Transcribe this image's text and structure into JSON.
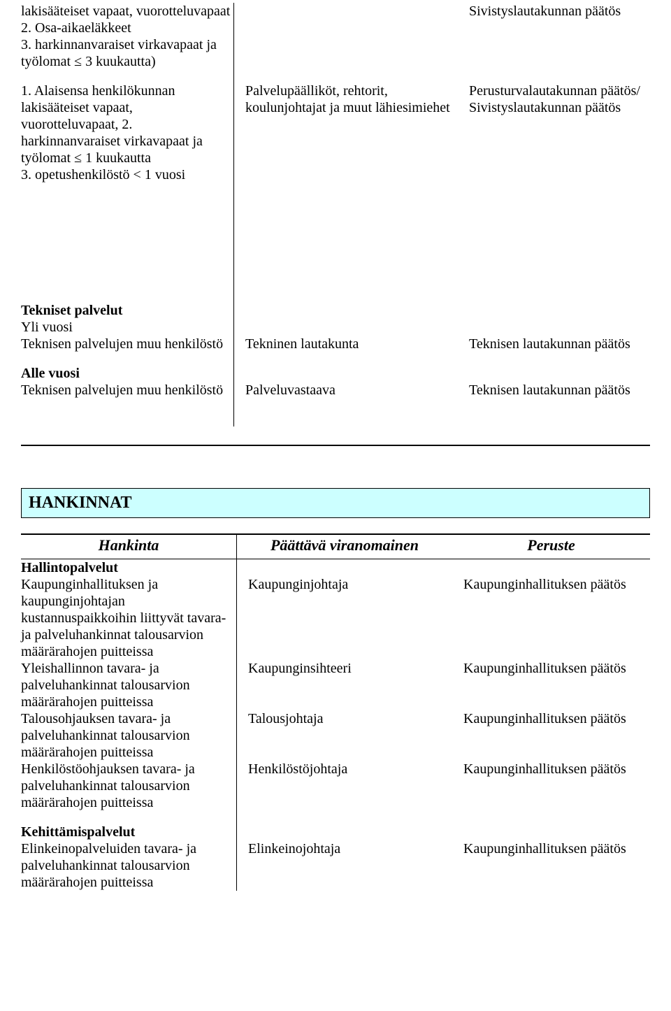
{
  "top": {
    "rows": [
      {
        "c1": "lakisääteiset vapaat, vuorotteluvapaat\n2. Osa-aikaeläkkeet\n3. harkinnanvaraiset virkavapaat ja työlomat ≤ 3 kuukautta)",
        "c2": "",
        "c3": "Sivistyslautakunnan päätös"
      },
      {
        "c1": "1. Alaisensa henkilökunnan lakisääteiset vapaat, vuorotteluvapaat, 2. harkinnanvaraiset virkavapaat ja työlomat ≤ 1 kuukautta\n3. opetushenkilöstö < 1 vuosi",
        "c2": "Palvelupäälliköt, rehtorit, koulunjohtajat ja muut lähiesimiehet",
        "c3": "Perusturvalautakunnan päätös/ Sivistyslautakunnan päätös"
      }
    ],
    "tekniset_header": "Tekniset palvelut",
    "yli_line": "Yli vuosi",
    "tek_rows": [
      {
        "c1": "Teknisen palvelujen muu henkilöstö",
        "c2": "Tekninen lautakunta",
        "c3": "Teknisen lautakunnan päätös"
      }
    ],
    "alle_header": "Alle vuosi",
    "alle_rows": [
      {
        "c1": "Teknisen palvelujen muu henkilöstö",
        "c2": "Palveluvastaava",
        "c3": "Teknisen lautakunnan päätös"
      }
    ]
  },
  "section_title": "HANKINNAT",
  "hankinta_headers": {
    "h1": "Hankinta",
    "h2": "Päättävä viranomainen",
    "h3": "Peruste"
  },
  "hankinta": {
    "hallinto_header": "Hallintopalvelut",
    "rows": [
      {
        "c1": "Kaupunginhallituksen ja kaupunginjohtajan kustannuspaikkoihin liittyvät tavara- ja palveluhankinnat talousarvion määrärahojen puitteissa",
        "c2": "Kaupunginjohtaja",
        "c3": "Kaupunginhallituksen päätös"
      },
      {
        "c1": "Yleishallinnon tavara- ja palveluhankinnat talousarvion määrärahojen puitteissa",
        "c2": "Kaupunginsihteeri",
        "c3": "Kaupunginhallituksen päätös"
      },
      {
        "c1": "Talousohjauksen tavara- ja palveluhankinnat talousarvion määrärahojen puitteissa",
        "c2": "Talousjohtaja",
        "c3": "Kaupunginhallituksen päätös"
      },
      {
        "c1": "Henkilöstöohjauksen tavara- ja palveluhankinnat talousarvion määrärahojen puitteissa",
        "c2": "Henkilöstöjohtaja",
        "c3": "Kaupunginhallituksen päätös"
      }
    ],
    "kehit_header": "Kehittämispalvelut",
    "kehit_rows": [
      {
        "c1": "Elinkeinopalveluiden tavara- ja palveluhankinnat talousarvion määrärahojen puitteissa",
        "c2": "Elinkeinojohtaja",
        "c3": "Kaupunginhallituksen päätös"
      }
    ]
  }
}
